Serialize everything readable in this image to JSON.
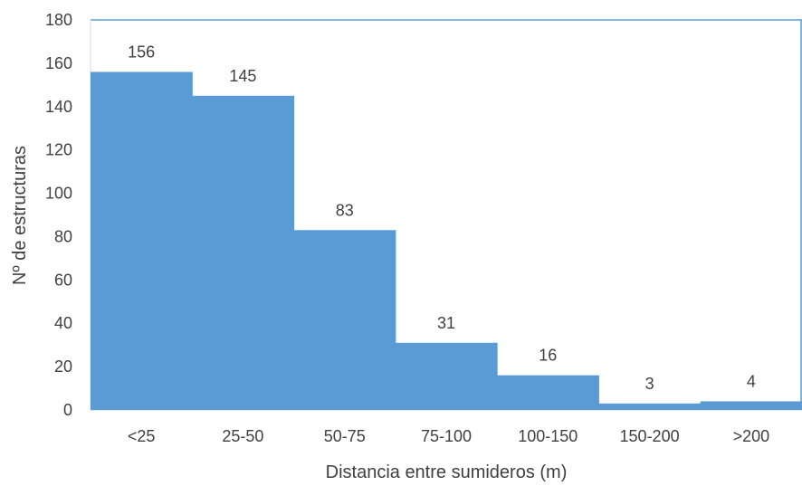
{
  "chart_data": {
    "type": "bar",
    "title": "",
    "xlabel": "Distancia entre sumideros (m)",
    "ylabel": "Nº de estructuras",
    "categories": [
      "<25",
      "25-50",
      "50-75",
      "75-100",
      "100-150",
      "150-200",
      ">200"
    ],
    "values": [
      156,
      145,
      83,
      31,
      16,
      3,
      4
    ],
    "ylim": [
      0,
      180
    ],
    "yticks": [
      0,
      20,
      40,
      60,
      80,
      100,
      120,
      140,
      160,
      180
    ],
    "grid": false,
    "legend": "none",
    "bar_color": "#5B9BD5",
    "axis_color": "#D9D9D9",
    "frame_color": "#5B9BD5"
  }
}
